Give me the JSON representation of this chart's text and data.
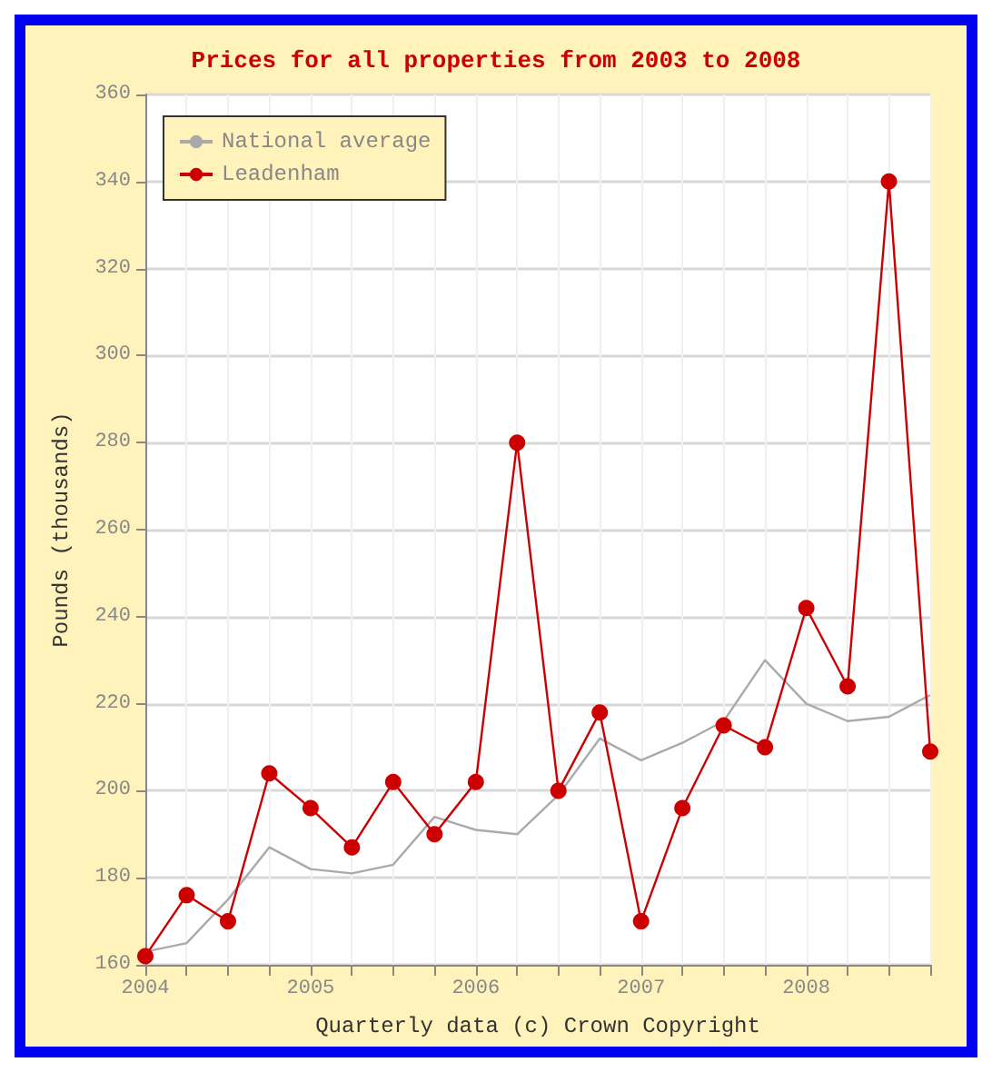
{
  "chart_data": {
    "type": "line",
    "title": "Prices for all properties from 2003 to 2008",
    "xlabel": "Quarterly data (c) Crown Copyright",
    "ylabel": "Pounds (thousands)",
    "x": [
      2004,
      2004.25,
      2004.5,
      2004.75,
      2005,
      2005.25,
      2005.5,
      2005.75,
      2006,
      2006.25,
      2006.5,
      2006.75,
      2007,
      2007.25,
      2007.5,
      2007.75,
      2008,
      2008.25,
      2008.5,
      2008.75
    ],
    "series": [
      {
        "name": "National average",
        "color": "#aaaaaa",
        "marker": "none",
        "values": [
          163,
          165,
          175,
          187,
          182,
          181,
          183,
          194,
          191,
          190,
          199,
          212,
          207,
          211,
          216,
          230,
          220,
          216,
          217,
          222
        ]
      },
      {
        "name": "Leadenham",
        "color": "#cc0000",
        "values": [
          162,
          176,
          170,
          204,
          196,
          187,
          202,
          190,
          202,
          280,
          200,
          218,
          170,
          196,
          215,
          210,
          242,
          224,
          340,
          209
        ]
      }
    ],
    "xlim": [
      2004,
      2008.75
    ],
    "xticks": [
      2004,
      {
        "value": 2004.25,
        "label": null
      },
      {
        "value": 2004.5,
        "label": null
      },
      {
        "value": 2004.75,
        "label": null
      },
      2005,
      {
        "value": 2005.25,
        "label": null
      },
      {
        "value": 2005.5,
        "label": null
      },
      {
        "value": 2005.75,
        "label": null
      },
      2006,
      {
        "value": 2006.25,
        "label": null
      },
      {
        "value": 2006.5,
        "label": null
      },
      {
        "value": 2006.75,
        "label": null
      },
      2007,
      {
        "value": 2007.25,
        "label": null
      },
      {
        "value": 2007.5,
        "label": null
      },
      {
        "value": 2007.75,
        "label": null
      },
      2008,
      {
        "value": 2008.25,
        "label": null
      },
      {
        "value": 2008.5,
        "label": null
      },
      {
        "value": 2008.75,
        "label": null
      }
    ],
    "ylim": [
      160,
      360
    ],
    "yticks": [
      160,
      180,
      200,
      220,
      240,
      260,
      280,
      300,
      320,
      340,
      360
    ],
    "grid": true,
    "legend": "top left",
    "marker": "circle",
    "line_style": "solid"
  }
}
